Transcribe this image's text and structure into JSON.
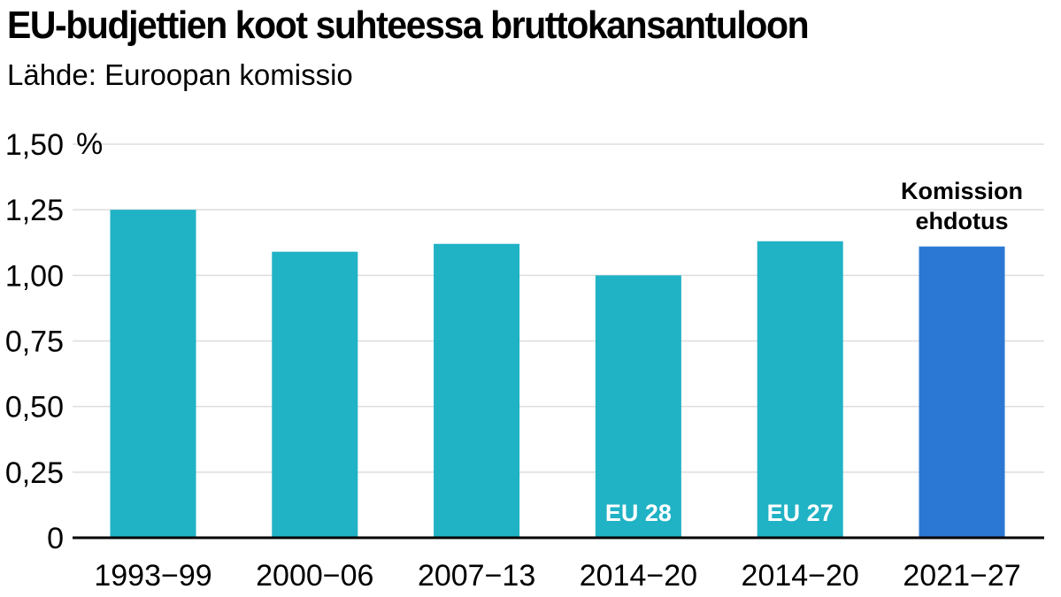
{
  "chart_data": {
    "type": "bar",
    "title": "EU-budjettien koot suhteessa bruttokansantuloon",
    "subtitle": "Lähde: Euroopan komissio",
    "unit": "%",
    "categories": [
      "1993−99",
      "2000−06",
      "2007−13",
      "2014−20",
      "2014−20",
      "2021−27"
    ],
    "values": [
      1.25,
      1.09,
      1.12,
      1.0,
      1.13,
      1.11
    ],
    "bar_labels": [
      "",
      "",
      "",
      "EU 28",
      "EU 27",
      ""
    ],
    "annotation": {
      "line1": "Komission",
      "line2": "ehdotus",
      "category_index": 5
    },
    "y_ticks": [
      "0",
      "0,25",
      "0,50",
      "0,75",
      "1,00",
      "1,25",
      "1,50"
    ],
    "y_tick_values": [
      0,
      0.25,
      0.5,
      0.75,
      1.0,
      1.25,
      1.5
    ],
    "ylim": [
      0,
      1.5
    ],
    "grid": true,
    "colors": [
      "#20b2c5",
      "#20b2c5",
      "#20b2c5",
      "#20b2c5",
      "#20b2c5",
      "#2b78d4"
    ]
  }
}
